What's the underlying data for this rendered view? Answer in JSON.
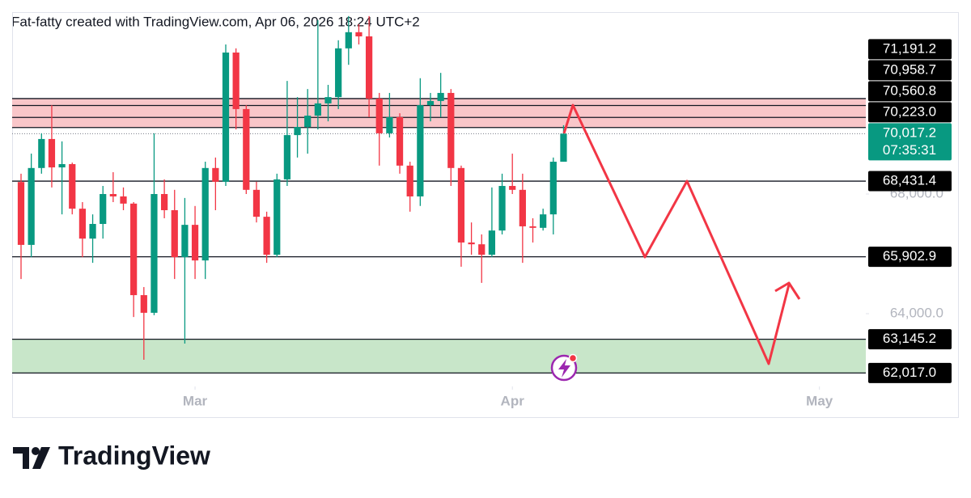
{
  "header": "Fat-fatty created with TradingView.com, Apr 06, 2026 18:24 UTC+2",
  "logo": "TradingView",
  "chart_data": {
    "type": "candlestick",
    "up_color": "#089981",
    "down_color": "#f23645",
    "categories": [
      null,
      null,
      null,
      null,
      null,
      null,
      null,
      null,
      null,
      null,
      null,
      null,
      null,
      null,
      null,
      null,
      null,
      null,
      null,
      null,
      null,
      null,
      null,
      null,
      null,
      null,
      null,
      null,
      null,
      null,
      null,
      null,
      null,
      null,
      null,
      null,
      null,
      null,
      null,
      null,
      null,
      null,
      null,
      null,
      null,
      null,
      null,
      null,
      null,
      null,
      null,
      null,
      null,
      null
    ],
    "open": [
      68400,
      66300,
      68870,
      69840,
      68890,
      69000,
      67510,
      66510,
      67000,
      68000,
      67920,
      67680,
      64620,
      64030,
      68000,
      67460,
      65890,
      66970,
      65780,
      68870,
      68410,
      72730,
      70840,
      68140,
      67240,
      65970,
      68490,
      69970,
      70240,
      70620,
      71030,
      71240,
      72870,
      73410,
      73270,
      71190,
      70030,
      70570,
      68950,
      67920,
      70970,
      71110,
      71380,
      68870,
      66380,
      66320,
      65970,
      66780,
      68270,
      68140,
      66920,
      66870,
      67320,
      69080
    ],
    "high": [
      68680,
      69350,
      70030,
      70970,
      69760,
      69050,
      67730,
      67320,
      68270,
      68730,
      68220,
      67730,
      64890,
      70030,
      68490,
      68140,
      67870,
      67600,
      69080,
      69220,
      73000,
      72870,
      70970,
      68410,
      67410,
      68680,
      71780,
      71240,
      71510,
      73810,
      71650,
      73140,
      73950,
      73680,
      73950,
      71380,
      71380,
      70700,
      69080,
      71870,
      71380,
      72050,
      71510,
      68950,
      67050,
      66650,
      68220,
      68680,
      69350,
      68680,
      67190,
      67510,
      69220,
      70300
    ],
    "low": [
      65160,
      65890,
      68680,
      68220,
      67320,
      67320,
      65890,
      65700,
      66510,
      67730,
      67460,
      63890,
      62460,
      63950,
      67190,
      65160,
      63000,
      65160,
      65160,
      67460,
      68270,
      70160,
      68000,
      67050,
      65700,
      65890,
      68270,
      69220,
      69350,
      70160,
      70430,
      70840,
      72320,
      73000,
      70570,
      68950,
      69890,
      68680,
      67410,
      67600,
      70430,
      70570,
      68270,
      65570,
      65970,
      65030,
      65890,
      66650,
      68000,
      65700,
      66380,
      66780,
      66650,
      69080
    ],
    "close": [
      66300,
      68870,
      69840,
      68890,
      69000,
      67510,
      66510,
      67000,
      68000,
      67920,
      67680,
      64620,
      64030,
      68000,
      67460,
      65890,
      66970,
      65780,
      68870,
      68410,
      72730,
      70840,
      68140,
      67240,
      65970,
      68490,
      69970,
      70240,
      70620,
      71030,
      71240,
      72870,
      73410,
      73270,
      71190,
      70030,
      70570,
      68950,
      67920,
      70970,
      71110,
      71380,
      68870,
      66380,
      66320,
      65970,
      66780,
      68270,
      68140,
      66920,
      66870,
      67320,
      69080,
      70017.2
    ],
    "xlim": [
      -0.87,
      82.53
    ],
    "xticks": [
      {
        "value": 17,
        "label": "Mar"
      },
      {
        "value": 48,
        "label": "Apr"
      },
      {
        "value": 78,
        "label": "May"
      }
    ],
    "ylim": [
      61568,
      74081
    ],
    "yticks": [
      {
        "value": 64000,
        "label": "64,000.0"
      },
      {
        "value": 68000,
        "label": "68,000.0"
      }
    ],
    "zones": [
      {
        "low": 70223.0,
        "high": 71191.2,
        "color": "#f9c6c9"
      },
      {
        "low": 62017.0,
        "high": 63145.2,
        "color": "#c8e6c9"
      }
    ],
    "levels": [
      {
        "value": 71191.2,
        "label": "71,191.2"
      },
      {
        "value": 70958.7,
        "label": "70,958.7"
      },
      {
        "value": 70560.8,
        "label": "70,560.8"
      },
      {
        "value": 70223.0,
        "label": "70,223.0"
      },
      {
        "value": 68431.4,
        "label": "68,431.4"
      },
      {
        "value": 65902.9,
        "label": "65,902.9"
      },
      {
        "value": 63145.2,
        "label": "63,145.2"
      },
      {
        "value": 62017.0,
        "label": "62,017.0"
      }
    ],
    "last_price": {
      "value": 70017.2,
      "label": "70,017.2",
      "countdown": "07:35:31",
      "color": "#089981"
    }
  }
}
